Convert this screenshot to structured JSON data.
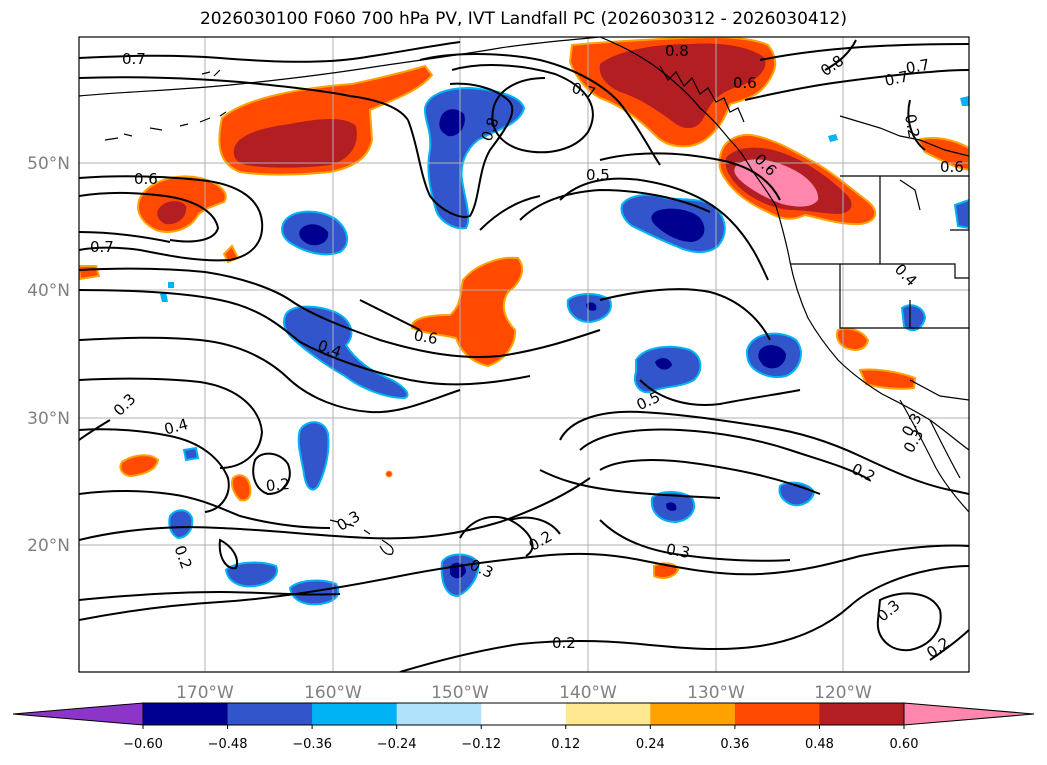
{
  "title": "2026030100 F060 700 hPa PV, IVT Landfall PC (2026030312 - 2026030412)",
  "lat_labels": [
    "50°N",
    "40°N",
    "30°N",
    "20°N"
  ],
  "lon_labels": [
    "170°W",
    "160°W",
    "150°W",
    "140°W",
    "130°W",
    "120°W"
  ],
  "contour_labels": [
    "0.7",
    "0.8",
    "0.6",
    "0.7",
    "0.8",
    "0.7",
    "0.8",
    "0.6",
    "0.6",
    "0.7",
    "0.5",
    "0.6",
    "0.7",
    "0.4",
    "0.6",
    "0.4",
    "0.5",
    "0.3",
    "0.4",
    "0.2",
    "0.3",
    "0.2",
    "0.2",
    "0.2",
    "0.3",
    "0.3",
    "0.3",
    "0.2",
    "0.3",
    "0.2",
    "0.2",
    "0.3"
  ],
  "colorbar": {
    "ticks": [
      "−0.60",
      "−0.48",
      "−0.36",
      "−0.24",
      "−0.12",
      "0.12",
      "0.24",
      "0.36",
      "0.48",
      "0.60"
    ],
    "colors": [
      "#8e35c9",
      "#000090",
      "#3355cc",
      "#00b3f5",
      "#b0e2fb",
      "#ffffff",
      "#ffe890",
      "#ffa200",
      "#ff4a00",
      "#b21e22",
      "#ff86ad",
      "#ff86ad"
    ]
  }
}
